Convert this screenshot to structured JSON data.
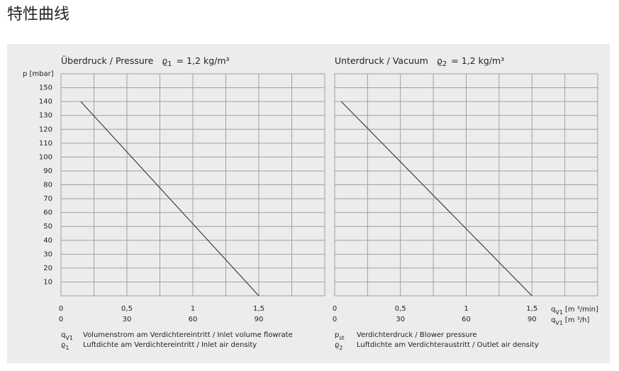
{
  "title": "特性曲线",
  "chart_data": [
    {
      "type": "line",
      "title": "Überdruck / Pressure",
      "density_symbol": "ϱ",
      "density_index": "1",
      "density_value": "= 1,2 kg/m³",
      "ylabel": "p [mbar]",
      "xlim": [
        0,
        2
      ],
      "ylim": [
        0,
        160
      ],
      "xticks": [
        0,
        {
          "value": 0.5,
          "label": "0,5"
        },
        1,
        {
          "value": 1.5,
          "label": "1,5"
        }
      ],
      "x_minor_ticks": [
        0.25,
        0.75,
        1.25,
        1.75
      ],
      "x2lim": [
        0,
        120
      ],
      "x2ticks": [
        0,
        30,
        60,
        90
      ],
      "yticks": [
        10,
        20,
        30,
        40,
        50,
        60,
        70,
        80,
        90,
        100,
        110,
        120,
        130,
        140,
        150
      ],
      "show_ytick_labels": true,
      "grid": true,
      "series": [
        {
          "color": "#333333",
          "x": [
            0.15,
            1.5
          ],
          "values": [
            140,
            0
          ]
        }
      ],
      "notes": [
        {
          "symbol": "q",
          "index": "V1",
          "text": "Volumenstrom am Verdichtereintritt / Inlet volume flowrate"
        },
        {
          "symbol": "ϱ",
          "index": "1",
          "text": "Luftdichte am Verdichtereintritt / Inlet air density"
        }
      ]
    },
    {
      "type": "line",
      "title": "Unterdruck / Vacuum",
      "density_symbol": "ϱ",
      "density_index": "2",
      "density_value": "= 1,2 kg/m³",
      "xlim": [
        0,
        2
      ],
      "ylim": [
        0,
        160
      ],
      "xticks": [
        0,
        {
          "value": 0.5,
          "label": "0,5"
        },
        1,
        {
          "value": 1.5,
          "label": "1,5"
        }
      ],
      "x_minor_ticks": [
        0.25,
        0.75,
        1.25,
        1.75
      ],
      "x2lim": [
        0,
        120
      ],
      "x2ticks": [
        0,
        30,
        60,
        90
      ],
      "xlabel": {
        "symbol": "q",
        "index": "V1",
        "unit": "[m ³/min]"
      },
      "x2label": {
        "symbol": "q",
        "index": "V1",
        "unit": "[m ³/h]"
      },
      "yticks": [
        10,
        20,
        30,
        40,
        50,
        60,
        70,
        80,
        90,
        100,
        110,
        120,
        130,
        140,
        150
      ],
      "show_ytick_labels": false,
      "grid": true,
      "series": [
        {
          "color": "#333333",
          "x": [
            0.05,
            1.5
          ],
          "values": [
            140,
            0
          ]
        }
      ],
      "notes": [
        {
          "symbol": "p",
          "index": "st",
          "text": "Verdichterdruck / Blower pressure"
        },
        {
          "symbol": "ϱ",
          "index": "2",
          "text": "Luftdichte am Verdichteraustritt / Outlet air density"
        }
      ]
    }
  ]
}
